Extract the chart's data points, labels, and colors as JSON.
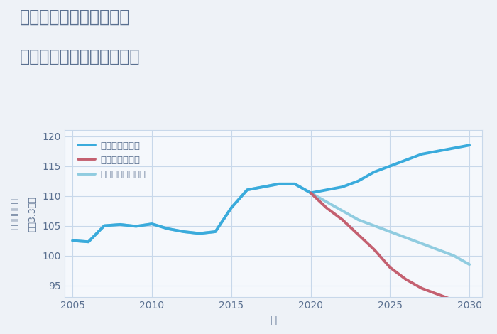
{
  "title_line1": "岐阜県養老郡養老町豊の",
  "title_line2": "中古マンションの価格推移",
  "xlabel": "年",
  "ylabel_parts": [
    "坪（3.3㎡）",
    "単価（万円）"
  ],
  "background_color": "#eef2f7",
  "plot_background_color": "#f5f8fc",
  "grid_color": "#c8d8ea",
  "title_color": "#5a7090",
  "axis_color": "#5a7090",
  "ylim": [
    93,
    121
  ],
  "yticks": [
    95,
    100,
    105,
    110,
    115,
    120
  ],
  "good_scenario": {
    "label": "グッドシナリオ",
    "color": "#3aabdc",
    "linewidth": 2.8,
    "x": [
      2005,
      2006,
      2007,
      2008,
      2009,
      2010,
      2011,
      2012,
      2013,
      2014,
      2015,
      2016,
      2017,
      2018,
      2019,
      2020,
      2021,
      2022,
      2023,
      2024,
      2025,
      2026,
      2027,
      2028,
      2029,
      2030
    ],
    "y": [
      102.5,
      102.3,
      105.0,
      105.2,
      104.9,
      105.3,
      104.5,
      104.0,
      103.7,
      104.0,
      108.0,
      111.0,
      111.5,
      112.0,
      112.0,
      110.5,
      111.0,
      111.5,
      112.5,
      114.0,
      115.0,
      116.0,
      117.0,
      117.5,
      118.0,
      118.5
    ]
  },
  "bad_scenario": {
    "label": "バッドシナリオ",
    "color": "#c46070",
    "linewidth": 2.8,
    "x": [
      2020,
      2021,
      2022,
      2023,
      2024,
      2025,
      2026,
      2027,
      2028,
      2029,
      2030
    ],
    "y": [
      110.5,
      108.0,
      106.0,
      103.5,
      101.0,
      98.0,
      96.0,
      94.5,
      93.5,
      92.5,
      92.0
    ]
  },
  "normal_scenario": {
    "label": "ノーマルシナリオ",
    "color": "#90cce0",
    "linewidth": 2.8,
    "x": [
      2005,
      2006,
      2007,
      2008,
      2009,
      2010,
      2011,
      2012,
      2013,
      2014,
      2015,
      2016,
      2017,
      2018,
      2019,
      2020,
      2021,
      2022,
      2023,
      2024,
      2025,
      2026,
      2027,
      2028,
      2029,
      2030
    ],
    "y": [
      102.5,
      102.3,
      105.0,
      105.2,
      104.9,
      105.3,
      104.5,
      104.0,
      103.7,
      104.0,
      108.0,
      111.0,
      111.5,
      112.0,
      112.0,
      110.5,
      109.0,
      107.5,
      106.0,
      105.0,
      104.0,
      103.0,
      102.0,
      101.0,
      100.0,
      98.5
    ]
  },
  "xticks": [
    2005,
    2010,
    2015,
    2020,
    2025,
    2030
  ],
  "legend_loc": "upper left"
}
